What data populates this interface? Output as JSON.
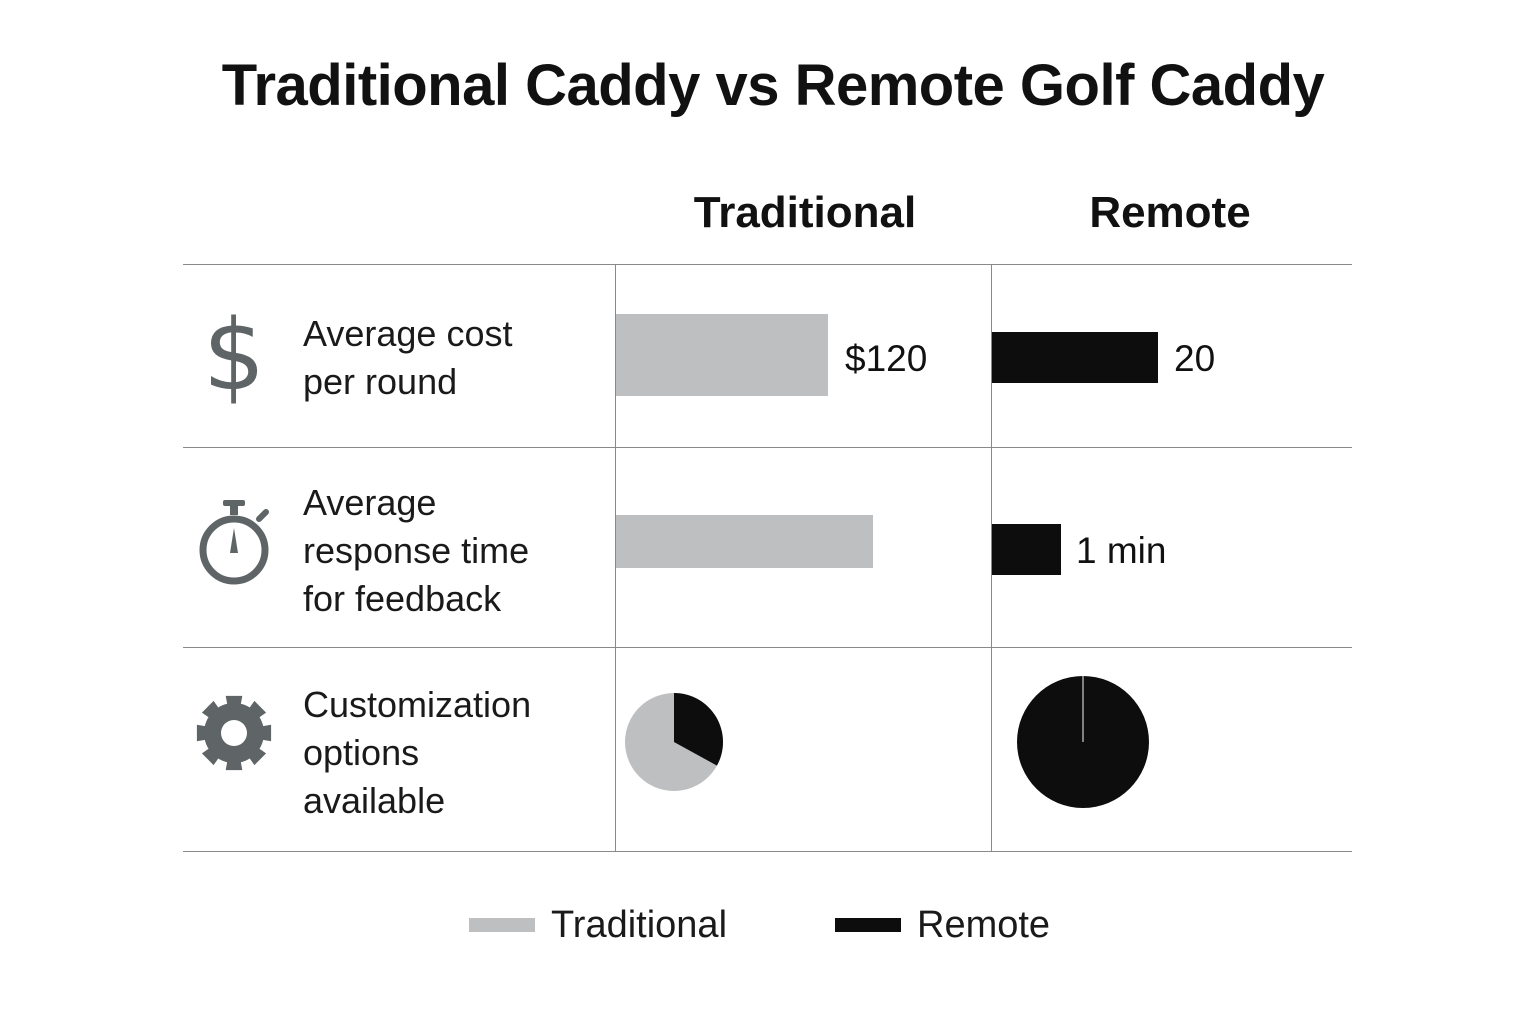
{
  "title": "Traditional Caddy vs Remote Golf Caddy",
  "columns": {
    "traditional": "Traditional",
    "remote": "Remote"
  },
  "colors": {
    "traditional": "#bebfc0",
    "remote": "#0d0d0d",
    "icon": "#5f6567"
  },
  "rows": [
    {
      "icon": "dollar-sign-icon",
      "label_lines": [
        "Average cost",
        "per round"
      ],
      "traditional_label": "$120",
      "remote_label": "20"
    },
    {
      "icon": "stopwatch-icon",
      "label_lines": [
        "Average",
        "response time",
        "for feedback"
      ],
      "traditional_label": "",
      "remote_label": "1 min"
    },
    {
      "icon": "gear-icon",
      "label_lines": [
        "Customization",
        "options",
        "available"
      ],
      "traditional_label": "",
      "remote_label": ""
    }
  ],
  "legend": [
    {
      "name": "Traditional",
      "color": "#bebfc0"
    },
    {
      "name": "Remote",
      "color": "#0d0d0d"
    }
  ],
  "chart_data": {
    "type": "table",
    "title": "Traditional Caddy vs Remote Golf Caddy",
    "series": [
      {
        "name": "Traditional",
        "values": [
          120,
          null,
          0.33
        ]
      },
      {
        "name": "Remote",
        "values": [
          20,
          1,
          1.0
        ]
      }
    ],
    "categories": [
      "Average cost per round",
      "Average response time for feedback",
      "Customization options available"
    ],
    "bar_length_ratio_traditional_to_remote": [
      1.28,
      3.73
    ],
    "pie_fraction_dark": {
      "Traditional": 0.33,
      "Remote": 1.0
    },
    "value_labels": {
      "Traditional": [
        "$120",
        "",
        ""
      ],
      "Remote": [
        "20",
        "1 min",
        ""
      ]
    },
    "legend_position": "bottom-center"
  }
}
